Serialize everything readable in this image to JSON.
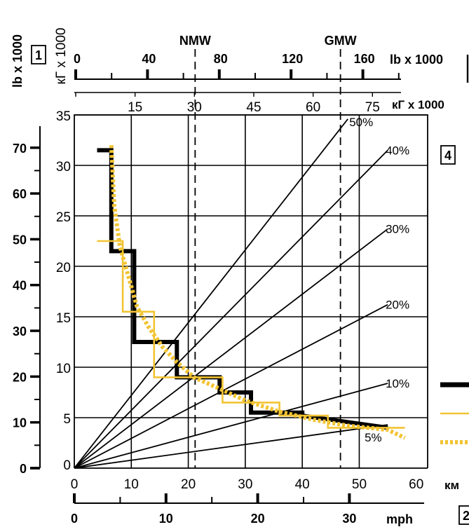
{
  "chart_data": {
    "type": "line",
    "top_axis": {
      "label": "lb x 1000",
      "ticks": [
        "0",
        "40",
        "80",
        "120",
        "160"
      ],
      "tick_values": [
        0,
        40,
        80,
        120,
        160
      ]
    },
    "second_axis": {
      "label": "кГ x 1000",
      "ticks": [
        "15",
        "30",
        "45",
        "60",
        "75"
      ],
      "tick_values": [
        15,
        30,
        45,
        60,
        75
      ]
    },
    "left_axis_lb": {
      "label": "lb x 1000",
      "ticks": [
        "0",
        "10",
        "20",
        "30",
        "40",
        "50",
        "60",
        "70"
      ],
      "tick_values": [
        0,
        10,
        20,
        30,
        40,
        50,
        60,
        70
      ]
    },
    "left_axis_kg": {
      "label": "кГ x 1000",
      "ticks": [
        "0",
        "5",
        "10",
        "15",
        "20",
        "25",
        "30",
        "35"
      ],
      "tick_values": [
        0,
        5,
        10,
        15,
        20,
        25,
        30,
        35
      ]
    },
    "bottom_axis_km": {
      "label": "км",
      "ticks": [
        "0",
        "10",
        "20",
        "30",
        "40",
        "50",
        "60"
      ],
      "tick_values": [
        0,
        10,
        20,
        30,
        40,
        50,
        60
      ]
    },
    "bottom_axis_mph": {
      "label": "mph",
      "ticks": [
        "0",
        "10",
        "20",
        "30"
      ],
      "tick_values": [
        0,
        10,
        20,
        30
      ]
    },
    "boxed_labels": [
      "1",
      "2",
      "4"
    ],
    "xlim": [
      0,
      62
    ],
    "ylim": [
      0,
      35
    ],
    "vlines": [
      {
        "label": "NMW",
        "x": 21.2
      },
      {
        "label": "GMW",
        "x": 46.7
      }
    ],
    "grades": [
      {
        "label": "50%",
        "end_x": 48.0,
        "end_y": 34.6
      },
      {
        "label": "40%",
        "end_x": 55.0,
        "end_y": 31.5
      },
      {
        "label": "30%",
        "end_x": 55.0,
        "end_y": 23.7
      },
      {
        "label": "20%",
        "end_x": 55.0,
        "end_y": 16.2
      },
      {
        "label": "10%",
        "end_x": 55.0,
        "end_y": 8.4
      },
      {
        "label": "5%",
        "end_x": 55.0,
        "end_y": 4.3
      }
    ],
    "series": [
      {
        "color": "#000000",
        "style": "solid-thick",
        "points": [
          [
            4,
            31.5
          ],
          [
            6.5,
            31.5
          ],
          [
            6.5,
            21.5
          ],
          [
            10.5,
            21.5
          ],
          [
            10.5,
            12.5
          ],
          [
            18,
            12.5
          ],
          [
            18,
            9
          ],
          [
            25.5,
            9
          ],
          [
            25.5,
            7.5
          ],
          [
            31,
            7.5
          ],
          [
            31,
            5.5
          ],
          [
            40,
            5.5
          ],
          [
            40,
            5.2
          ],
          [
            55,
            4.0
          ]
        ]
      },
      {
        "color": "#f2c433",
        "style": "solid",
        "points": [
          [
            4,
            22.5
          ],
          [
            8.5,
            22.5
          ],
          [
            8.5,
            15.5
          ],
          [
            14,
            15.5
          ],
          [
            14,
            9
          ],
          [
            26,
            9
          ],
          [
            26,
            6.5
          ],
          [
            36,
            6.5
          ],
          [
            36,
            5.2
          ],
          [
            44.5,
            5.2
          ],
          [
            44.5,
            4.0
          ],
          [
            58,
            4.0
          ]
        ]
      },
      {
        "color": "#f2c433",
        "style": "dotted",
        "points": [
          [
            6.5,
            32.0
          ],
          [
            7.0,
            26.0
          ],
          [
            8.0,
            22.0
          ],
          [
            9.5,
            19.0
          ],
          [
            11.0,
            16.0
          ],
          [
            13.0,
            14.0
          ],
          [
            15.5,
            12.0
          ],
          [
            18.0,
            10.5
          ],
          [
            21.0,
            9.0
          ],
          [
            25.0,
            8.0
          ],
          [
            30.0,
            6.7
          ],
          [
            36.0,
            5.6
          ],
          [
            42.0,
            4.8
          ],
          [
            48.0,
            4.2
          ],
          [
            55.0,
            3.8
          ],
          [
            58.0,
            3.0
          ]
        ]
      }
    ],
    "legend": [
      {
        "color": "#000000",
        "style": "solid-thick"
      },
      {
        "color": "#f2c433",
        "style": "solid"
      },
      {
        "color": "#f2c433",
        "style": "dotted"
      }
    ],
    "grid": true
  }
}
